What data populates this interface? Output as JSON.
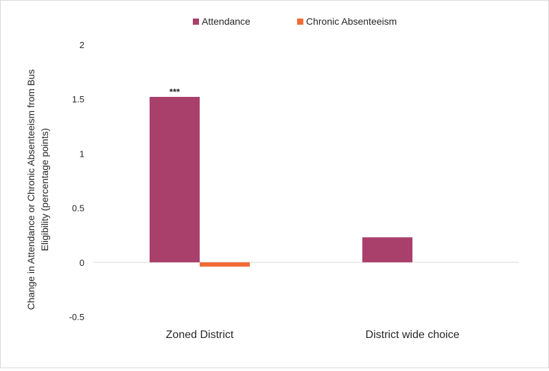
{
  "chart_data": {
    "type": "bar",
    "categories": [
      "Zoned District",
      "District wide choice"
    ],
    "series": [
      {
        "name": "Attendance",
        "color": "#A9406B",
        "values": [
          1.52,
          0.23
        ],
        "annotations": [
          "***",
          ""
        ]
      },
      {
        "name": "Chronic Absenteeism",
        "color": "#F26B35",
        "values": [
          -0.04,
          null
        ],
        "annotations": [
          "",
          ""
        ]
      }
    ],
    "ylabel": "Change in Attendance or Chronic Absenteeism from Bus Eligibility (percentage points)",
    "ylim": [
      -0.5,
      2
    ],
    "yticks": [
      2,
      1.5,
      1,
      0.5,
      0,
      -0.5
    ],
    "ytick_labels": [
      "2",
      "1.5",
      "1",
      "0.5",
      "0",
      "-0.5"
    ],
    "grid": false,
    "legend_position": "top"
  }
}
